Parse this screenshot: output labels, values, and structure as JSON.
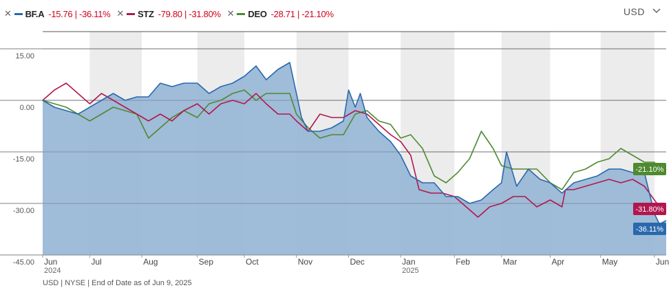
{
  "legend": [
    {
      "ticker": "BF.A",
      "stats": "-15.76 | -36.11%",
      "color": "#2a68ad"
    },
    {
      "ticker": "STZ",
      "stats": "-79.80 | -31.80%",
      "color": "#b1174f"
    },
    {
      "ticker": "DEO",
      "stats": "-28.71 | -21.10%",
      "color": "#4e8a2f"
    }
  ],
  "currency_label": "USD",
  "footer": "USD | NYSE | End of Date as of Jun 9, 2025",
  "colors": {
    "bfa": "#2a68ad",
    "bfa_fill": "#9ab8d7",
    "stz": "#b1174f",
    "deo": "#4e8a2f",
    "band": "#ececec"
  },
  "chart_data": {
    "type": "line",
    "xlim": [
      "2024-06-03",
      "2025-06-09"
    ],
    "ylim": [
      -45,
      20
    ],
    "yticks": [
      15,
      0,
      -15,
      -30,
      -45
    ],
    "ytick_labels": [
      "15.00",
      "0.00",
      "-15.00",
      "-30.00",
      "-45.00"
    ],
    "months": [
      {
        "label": "Jun",
        "sub": "2024",
        "date": "2024-06-03"
      },
      {
        "label": "Jul",
        "sub": "",
        "date": "2024-07-01"
      },
      {
        "label": "Aug",
        "sub": "",
        "date": "2024-08-01"
      },
      {
        "label": "Sep",
        "sub": "",
        "date": "2024-09-03"
      },
      {
        "label": "Oct",
        "sub": "",
        "date": "2024-10-01"
      },
      {
        "label": "Nov",
        "sub": "",
        "date": "2024-11-01"
      },
      {
        "label": "Dec",
        "sub": "",
        "date": "2024-12-02"
      },
      {
        "label": "Jan",
        "sub": "2025",
        "date": "2025-01-02"
      },
      {
        "label": "Feb",
        "sub": "",
        "date": "2025-02-03"
      },
      {
        "label": "Mar",
        "sub": "",
        "date": "2025-03-03"
      },
      {
        "label": "Apr",
        "sub": "",
        "date": "2025-04-01"
      },
      {
        "label": "May",
        "sub": "",
        "date": "2025-05-01"
      },
      {
        "label": "Jun",
        "sub": "",
        "date": "2025-06-02"
      }
    ],
    "series": [
      {
        "name": "BF.A",
        "end_label": "-36.11%",
        "points": [
          [
            "2024-06-03",
            0
          ],
          [
            "2024-06-10",
            -2
          ],
          [
            "2024-06-17",
            -3
          ],
          [
            "2024-06-24",
            -4
          ],
          [
            "2024-07-01",
            -2
          ],
          [
            "2024-07-08",
            0
          ],
          [
            "2024-07-15",
            2
          ],
          [
            "2024-07-22",
            0
          ],
          [
            "2024-07-29",
            1
          ],
          [
            "2024-08-05",
            1
          ],
          [
            "2024-08-12",
            5
          ],
          [
            "2024-08-19",
            4
          ],
          [
            "2024-08-26",
            5
          ],
          [
            "2024-09-03",
            5
          ],
          [
            "2024-09-10",
            2
          ],
          [
            "2024-09-17",
            4
          ],
          [
            "2024-09-24",
            5
          ],
          [
            "2024-10-01",
            7
          ],
          [
            "2024-10-08",
            10
          ],
          [
            "2024-10-14",
            6
          ],
          [
            "2024-10-21",
            9
          ],
          [
            "2024-10-28",
            11
          ],
          [
            "2024-11-01",
            2
          ],
          [
            "2024-11-04",
            -5
          ],
          [
            "2024-11-08",
            -9
          ],
          [
            "2024-11-15",
            -9
          ],
          [
            "2024-11-22",
            -8
          ],
          [
            "2024-11-29",
            -6
          ],
          [
            "2024-12-02",
            3
          ],
          [
            "2024-12-06",
            -2
          ],
          [
            "2024-12-09",
            2
          ],
          [
            "2024-12-13",
            -5
          ],
          [
            "2024-12-20",
            -9
          ],
          [
            "2024-12-27",
            -12
          ],
          [
            "2025-01-02",
            -16
          ],
          [
            "2025-01-08",
            -22
          ],
          [
            "2025-01-15",
            -24
          ],
          [
            "2025-01-22",
            -24
          ],
          [
            "2025-01-29",
            -28
          ],
          [
            "2025-02-05",
            -28
          ],
          [
            "2025-02-12",
            -30
          ],
          [
            "2025-02-19",
            -29
          ],
          [
            "2025-02-26",
            -26
          ],
          [
            "2025-03-03",
            -24
          ],
          [
            "2025-03-06",
            -15
          ],
          [
            "2025-03-12",
            -25
          ],
          [
            "2025-03-19",
            -20
          ],
          [
            "2025-03-26",
            -23
          ],
          [
            "2025-04-01",
            -24
          ],
          [
            "2025-04-08",
            -27
          ],
          [
            "2025-04-15",
            -24
          ],
          [
            "2025-04-22",
            -23
          ],
          [
            "2025-04-29",
            -22
          ],
          [
            "2025-05-06",
            -20
          ],
          [
            "2025-05-13",
            -20
          ],
          [
            "2025-05-20",
            -21
          ],
          [
            "2025-05-27",
            -21
          ],
          [
            "2025-06-02",
            -33
          ],
          [
            "2025-06-05",
            -36
          ],
          [
            "2025-06-09",
            -35
          ]
        ]
      },
      {
        "name": "STZ",
        "end_label": "-31.80%",
        "points": [
          [
            "2024-06-03",
            0
          ],
          [
            "2024-06-10",
            3
          ],
          [
            "2024-06-17",
            5
          ],
          [
            "2024-06-24",
            2
          ],
          [
            "2024-07-01",
            -1
          ],
          [
            "2024-07-08",
            2
          ],
          [
            "2024-07-15",
            0
          ],
          [
            "2024-07-22",
            -2
          ],
          [
            "2024-07-29",
            -4
          ],
          [
            "2024-08-05",
            -6
          ],
          [
            "2024-08-12",
            -4
          ],
          [
            "2024-08-19",
            -6
          ],
          [
            "2024-08-26",
            -3
          ],
          [
            "2024-09-03",
            -1
          ],
          [
            "2024-09-10",
            -4
          ],
          [
            "2024-09-17",
            -1
          ],
          [
            "2024-09-24",
            0
          ],
          [
            "2024-10-01",
            -1
          ],
          [
            "2024-10-08",
            2
          ],
          [
            "2024-10-14",
            -1
          ],
          [
            "2024-10-21",
            -4
          ],
          [
            "2024-10-28",
            -4
          ],
          [
            "2024-11-01",
            -6
          ],
          [
            "2024-11-08",
            -9
          ],
          [
            "2024-11-15",
            -4
          ],
          [
            "2024-11-22",
            -5
          ],
          [
            "2024-11-29",
            -5
          ],
          [
            "2024-12-06",
            -3
          ],
          [
            "2024-12-13",
            -4
          ],
          [
            "2024-12-20",
            -7
          ],
          [
            "2024-12-27",
            -10
          ],
          [
            "2025-01-02",
            -12
          ],
          [
            "2025-01-08",
            -16
          ],
          [
            "2025-01-13",
            -26
          ],
          [
            "2025-01-20",
            -27
          ],
          [
            "2025-01-27",
            -27
          ],
          [
            "2025-02-03",
            -28
          ],
          [
            "2025-02-10",
            -31
          ],
          [
            "2025-02-17",
            -34
          ],
          [
            "2025-02-24",
            -31
          ],
          [
            "2025-03-03",
            -30
          ],
          [
            "2025-03-10",
            -28
          ],
          [
            "2025-03-17",
            -28
          ],
          [
            "2025-03-24",
            -31
          ],
          [
            "2025-04-01",
            -29
          ],
          [
            "2025-04-08",
            -31
          ],
          [
            "2025-04-10",
            -26
          ],
          [
            "2025-04-15",
            -26
          ],
          [
            "2025-04-22",
            -25
          ],
          [
            "2025-04-29",
            -24
          ],
          [
            "2025-05-06",
            -23
          ],
          [
            "2025-05-13",
            -24
          ],
          [
            "2025-05-20",
            -23
          ],
          [
            "2025-05-27",
            -25
          ],
          [
            "2025-06-02",
            -29
          ],
          [
            "2025-06-05",
            -31
          ],
          [
            "2025-06-09",
            -32
          ]
        ]
      },
      {
        "name": "DEO",
        "end_label": "-21.10%",
        "points": [
          [
            "2024-06-03",
            0
          ],
          [
            "2024-06-10",
            -1
          ],
          [
            "2024-06-17",
            -2
          ],
          [
            "2024-06-24",
            -4
          ],
          [
            "2024-07-01",
            -6
          ],
          [
            "2024-07-08",
            -4
          ],
          [
            "2024-07-15",
            -2
          ],
          [
            "2024-07-22",
            -3
          ],
          [
            "2024-07-29",
            -4
          ],
          [
            "2024-08-05",
            -11
          ],
          [
            "2024-08-12",
            -8
          ],
          [
            "2024-08-19",
            -5
          ],
          [
            "2024-08-26",
            -3
          ],
          [
            "2024-09-03",
            -5
          ],
          [
            "2024-09-10",
            -1
          ],
          [
            "2024-09-17",
            0
          ],
          [
            "2024-09-24",
            2
          ],
          [
            "2024-10-01",
            3
          ],
          [
            "2024-10-08",
            0
          ],
          [
            "2024-10-14",
            2
          ],
          [
            "2024-10-21",
            2
          ],
          [
            "2024-10-28",
            2
          ],
          [
            "2024-11-01",
            -4
          ],
          [
            "2024-11-08",
            -8
          ],
          [
            "2024-11-15",
            -11
          ],
          [
            "2024-11-22",
            -10
          ],
          [
            "2024-11-29",
            -10
          ],
          [
            "2024-12-06",
            -4
          ],
          [
            "2024-12-13",
            -3
          ],
          [
            "2024-12-20",
            -6
          ],
          [
            "2024-12-27",
            -7
          ],
          [
            "2025-01-02",
            -11
          ],
          [
            "2025-01-08",
            -10
          ],
          [
            "2025-01-15",
            -14
          ],
          [
            "2025-01-22",
            -22
          ],
          [
            "2025-01-29",
            -24
          ],
          [
            "2025-02-05",
            -21
          ],
          [
            "2025-02-12",
            -17
          ],
          [
            "2025-02-19",
            -9
          ],
          [
            "2025-02-26",
            -14
          ],
          [
            "2025-03-03",
            -19
          ],
          [
            "2025-03-10",
            -20
          ],
          [
            "2025-03-17",
            -20
          ],
          [
            "2025-03-24",
            -20
          ],
          [
            "2025-04-01",
            -24
          ],
          [
            "2025-04-08",
            -26
          ],
          [
            "2025-04-15",
            -21
          ],
          [
            "2025-04-22",
            -20
          ],
          [
            "2025-04-29",
            -18
          ],
          [
            "2025-05-06",
            -17
          ],
          [
            "2025-05-13",
            -14
          ],
          [
            "2025-05-20",
            -16
          ],
          [
            "2025-05-27",
            -18
          ],
          [
            "2025-06-02",
            -18
          ],
          [
            "2025-06-05",
            -21
          ],
          [
            "2025-06-09",
            -20
          ]
        ]
      }
    ]
  }
}
